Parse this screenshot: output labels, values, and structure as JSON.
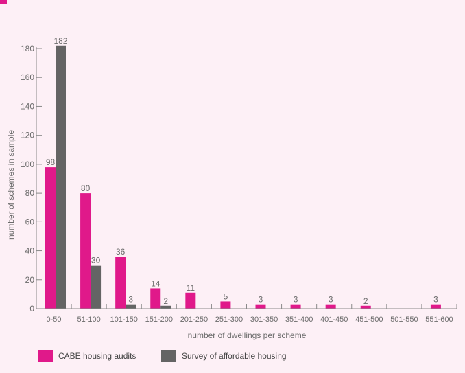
{
  "chart_data": {
    "type": "bar",
    "categories": [
      "0-50",
      "51-100",
      "101-150",
      "151-200",
      "201-250",
      "251-300",
      "301-350",
      "351-400",
      "401-450",
      "451-500",
      "501-550",
      "551-600"
    ],
    "series": [
      {
        "name": "CABE housing audits",
        "values": [
          98,
          80,
          36,
          14,
          11,
          5,
          3,
          3,
          3,
          2,
          null,
          3
        ],
        "color": "#e0198a"
      },
      {
        "name": "Survey of affordable housing",
        "values": [
          182,
          30,
          3,
          2,
          null,
          null,
          null,
          null,
          null,
          null,
          null,
          null
        ],
        "color": "#646464"
      }
    ],
    "xlabel": "number of dwellings per scheme",
    "ylabel": "number of schemes in sample",
    "ylim": [
      0,
      180
    ],
    "yticks": [
      0,
      20,
      40,
      60,
      80,
      100,
      120,
      140,
      160,
      180
    ],
    "legend_position": "bottom-left",
    "grid": false
  }
}
